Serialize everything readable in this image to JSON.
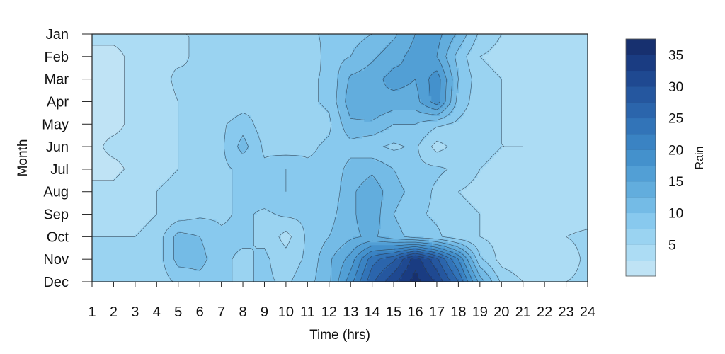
{
  "chart_data": {
    "type": "heatmap",
    "subtype": "filled-contour",
    "xlabel": "Time (hrs)",
    "ylabel": "Month",
    "x": [
      1,
      2,
      3,
      4,
      5,
      6,
      7,
      8,
      9,
      10,
      11,
      12,
      13,
      14,
      15,
      16,
      17,
      18,
      19,
      20,
      21,
      22,
      23,
      24
    ],
    "y": [
      "Jan",
      "Feb",
      "Mar",
      "Apr",
      "May",
      "Jun",
      "Jul",
      "Aug",
      "Sep",
      "Oct",
      "Nov",
      "Dec"
    ],
    "x_tick_labels": [
      "1",
      "2",
      "3",
      "4",
      "5",
      "6",
      "7",
      "8",
      "9",
      "10",
      "11",
      "12",
      "13",
      "14",
      "15",
      "16",
      "17",
      "18",
      "19",
      "20",
      "21",
      "22",
      "23",
      "24"
    ],
    "y_tick_labels": [
      "Jan",
      "Feb",
      "Mar",
      "Apr",
      "May",
      "Jun",
      "Jul",
      "Aug",
      "Sep",
      "Oct",
      "Nov",
      "Dec"
    ],
    "z": [
      [
        3,
        3,
        3,
        4,
        5,
        5,
        6,
        6,
        6,
        6,
        7,
        8,
        9,
        10,
        12,
        15,
        16,
        12,
        7,
        5,
        4,
        4,
        3,
        3
      ],
      [
        2,
        2,
        3,
        5,
        4,
        6,
        6,
        5,
        6,
        5,
        5,
        9,
        10,
        12,
        14,
        16,
        15,
        9,
        5,
        4,
        4,
        3,
        3,
        3
      ],
      [
        2,
        2,
        3,
        3,
        6,
        5,
        6,
        7,
        6,
        7,
        7,
        8,
        13,
        14,
        16,
        15,
        19,
        10,
        6,
        5,
        4,
        3,
        4,
        4
      ],
      [
        2,
        2,
        3,
        3,
        5,
        6,
        5,
        6,
        7,
        6,
        7,
        8,
        14,
        15,
        14,
        14,
        19,
        9,
        6,
        5,
        4,
        3,
        3,
        3
      ],
      [
        2,
        2,
        3,
        4,
        5,
        7,
        7,
        9,
        6,
        6,
        6,
        7,
        12,
        12,
        10,
        10,
        8,
        7,
        6,
        5,
        4,
        3,
        3,
        3
      ],
      [
        2,
        3,
        3,
        4,
        5,
        6,
        7,
        11,
        7,
        6,
        7,
        8,
        9,
        8,
        7,
        8,
        4,
        6,
        6,
        5,
        5,
        3,
        3,
        3
      ],
      [
        2,
        2,
        3,
        4,
        5,
        6,
        7,
        8,
        8,
        10,
        8,
        8,
        11,
        12,
        10,
        8,
        8,
        7,
        5,
        4,
        4,
        3,
        3,
        3
      ],
      [
        3,
        3,
        4,
        5,
        6,
        6,
        7,
        8,
        9,
        10,
        9,
        8,
        12,
        14,
        11,
        9,
        7,
        5,
        4,
        3,
        3,
        3,
        3,
        3
      ],
      [
        4,
        4,
        4,
        5,
        6,
        7,
        7,
        8,
        7,
        8,
        8,
        9,
        12,
        14,
        10,
        8,
        7,
        6,
        5,
        3,
        3,
        3,
        3,
        3
      ],
      [
        5,
        5,
        5,
        6,
        11,
        10,
        8,
        8,
        7,
        4,
        8,
        10,
        12,
        13,
        11,
        9,
        8,
        6,
        5,
        4,
        3,
        4,
        5,
        6
      ],
      [
        6,
        6,
        6,
        6,
        11,
        11,
        8,
        7,
        8,
        6,
        8,
        12,
        16,
        24,
        27,
        34,
        28,
        20,
        8,
        4,
        3,
        4,
        3,
        6
      ],
      [
        7,
        7,
        7,
        6,
        8,
        9,
        8,
        7,
        8,
        7,
        9,
        12,
        19,
        27,
        32,
        36,
        32,
        25,
        14,
        7,
        5,
        5,
        5,
        6
      ]
    ],
    "zlim": [
      0,
      37.5
    ],
    "levels": [
      2.5,
      5,
      7.5,
      10,
      12.5,
      15,
      17.5,
      20,
      22.5,
      25,
      27.5,
      30,
      32.5,
      35,
      37.5
    ],
    "colorbar": {
      "title": "Rain",
      "tick_values": [
        5,
        10,
        15,
        20,
        25,
        30,
        35
      ],
      "tick_labels": [
        "5",
        "10",
        "15",
        "20",
        "25",
        "30",
        "35"
      ],
      "colors": [
        "#bfe3f5",
        "#acdcf4",
        "#9ad3f1",
        "#88c9ee",
        "#74bbe6",
        "#62addd",
        "#529fd5",
        "#4491cc",
        "#3a83c3",
        "#3274b8",
        "#2b65ac",
        "#25579f",
        "#1f4991",
        "#1a3c82",
        "#17306f"
      ]
    }
  }
}
